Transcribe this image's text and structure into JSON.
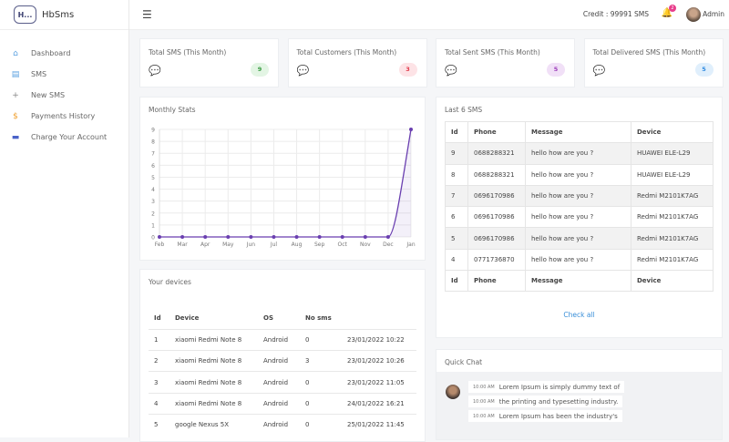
{
  "brand": {
    "logo_text": "H...",
    "name": "HbSms"
  },
  "sidebar": {
    "items": [
      {
        "label": "Dashboard",
        "icon": "home-icon",
        "color": "#5aa0e0"
      },
      {
        "label": "SMS",
        "icon": "message-icon",
        "color": "#5aa0e0"
      },
      {
        "label": "New SMS",
        "icon": "plus-icon",
        "color": "#888888"
      },
      {
        "label": "Payments History",
        "icon": "dollar-icon",
        "color": "#f0a030"
      },
      {
        "label": "Charge Your Account",
        "icon": "credit-card-icon",
        "color": "#4a62c8"
      }
    ]
  },
  "header": {
    "credit": "Credit : 99991 SMS",
    "notifications": "2",
    "user": "Admin"
  },
  "stats": [
    {
      "title": "Total SMS (This Month)",
      "value": "9",
      "bg": "#e3f5e4",
      "fg": "#3a9b42"
    },
    {
      "title": "Total Customers (This Month)",
      "value": "3",
      "bg": "#fde3e6",
      "fg": "#e0394a"
    },
    {
      "title": "Total Sent SMS (This Month)",
      "value": "5",
      "bg": "#f1e0f7",
      "fg": "#9b3bb8"
    },
    {
      "title": "Total Delivered SMS (This Month)",
      "value": "5",
      "bg": "#e0effc",
      "fg": "#2f8ae0"
    }
  ],
  "monthly": {
    "title": "Monthly Stats"
  },
  "chart_data": {
    "type": "area",
    "categories": [
      "Feb",
      "Mar",
      "Apr",
      "May",
      "Jun",
      "Jul",
      "Aug",
      "Sep",
      "Oct",
      "Nov",
      "Dec",
      "Jan"
    ],
    "values": [
      0,
      0,
      0,
      0,
      0,
      0,
      0,
      0,
      0,
      0,
      0,
      9
    ],
    "ylim": [
      0,
      9
    ],
    "yticks": [
      "0",
      "1",
      "2",
      "3",
      "4",
      "5",
      "6",
      "7",
      "8",
      "9"
    ],
    "grid": true,
    "color": "#6a3fb0"
  },
  "last_sms": {
    "title": "Last 6 SMS",
    "headers": [
      "Id",
      "Phone",
      "Message",
      "Device"
    ],
    "rows": [
      [
        "9",
        "0688288321",
        "hello how are you ?",
        "HUAWEI ELE-L29"
      ],
      [
        "8",
        "0688288321",
        "hello how are you ?",
        "HUAWEI ELE-L29"
      ],
      [
        "7",
        "0696170986",
        "hello how are you ?",
        "Redmi M2101K7AG"
      ],
      [
        "6",
        "0696170986",
        "hello how are you ?",
        "Redmi M2101K7AG"
      ],
      [
        "5",
        "0696170986",
        "hello how are you ?",
        "Redmi M2101K7AG"
      ],
      [
        "4",
        "0771736870",
        "hello how are you ?",
        "Redmi M2101K7AG"
      ]
    ],
    "check_all": "Check all"
  },
  "devices": {
    "title": "Your devices",
    "headers": [
      "Id",
      "Device",
      "OS",
      "No sms",
      ""
    ],
    "rows": [
      [
        "1",
        "xiaomi Redmi Note 8",
        "Android",
        "0",
        "23/01/2022 10:22"
      ],
      [
        "2",
        "xiaomi Redmi Note 8",
        "Android",
        "3",
        "23/01/2022 10:26"
      ],
      [
        "3",
        "xiaomi Redmi Note 8",
        "Android",
        "0",
        "23/01/2022 11:05"
      ],
      [
        "4",
        "xiaomi Redmi Note 8",
        "Android",
        "0",
        "24/01/2022 16:21"
      ],
      [
        "5",
        "google Nexus 5X",
        "Android",
        "0",
        "25/01/2022 11:45"
      ]
    ]
  },
  "chat": {
    "title": "Quick Chat",
    "messages": [
      {
        "time": "10:00 AM",
        "text": "Lorem Ipsum is simply dummy text of"
      },
      {
        "time": "10:00 AM",
        "text": "the printing and typesetting industry."
      },
      {
        "time": "10:00 AM",
        "text": "Lorem Ipsum has been the industry's"
      }
    ]
  }
}
